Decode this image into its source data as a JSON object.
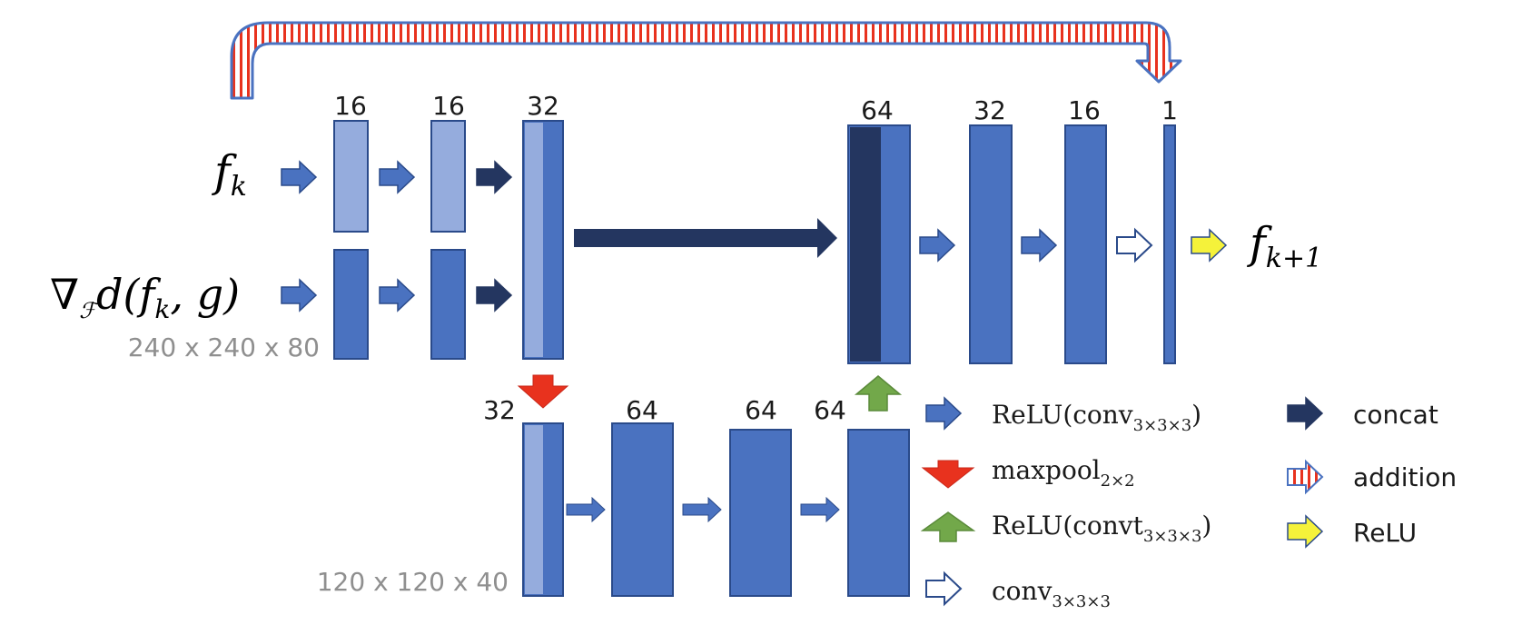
{
  "colors": {
    "light_block": "#95acdd",
    "block": "#4a72c0",
    "dark_block": "#243660",
    "outline": "#2a4a8a",
    "conv_arrow": "#4a72c0",
    "concat_arrow": "#243660",
    "maxpool_arrow": "#e8321e",
    "upconv_arrow": "#72a84a",
    "relu_arrow": "#f5f23a",
    "addition_stripe_red": "#e8321e",
    "addition_outline": "#4a72c0"
  },
  "inputs": {
    "f_k_label": "f",
    "f_k_sub": "k",
    "gradient_label": "∇",
    "gradient_sub": "ℱ",
    "gradient_rest": "d(f",
    "gradient_k": "k",
    "gradient_end": ", g)"
  },
  "output": {
    "label": "f",
    "sub": "k+1"
  },
  "encoder": {
    "channels": [
      "16",
      "16",
      "32"
    ],
    "dims": "240 x 240 x 80"
  },
  "bottleneck": {
    "channels": [
      "32",
      "64",
      "64",
      "64"
    ],
    "dims": "120 x 120 x 40"
  },
  "decoder": {
    "channels": [
      "64",
      "32",
      "16",
      "1"
    ]
  },
  "legend": {
    "relu_conv": {
      "main": "ReLU(conv",
      "sub": "3×3×3",
      "end": ")",
      "icon": "blue-arrow-icon"
    },
    "maxpool": {
      "main": "maxpool",
      "sub": "2×2",
      "icon": "red-down-arrow-icon"
    },
    "relu_convt": {
      "main": "ReLU(convt",
      "sub": "3×3×3",
      "end": ")",
      "icon": "green-up-arrow-icon"
    },
    "conv": {
      "main": "conv",
      "sub": "3×3×3",
      "icon": "hollow-arrow-icon"
    },
    "concat": {
      "label": "concat",
      "icon": "navy-arrow-icon"
    },
    "addition": {
      "label": "addition",
      "icon": "striped-arrow-icon"
    },
    "relu": {
      "label": "ReLU",
      "icon": "yellow-arrow-icon"
    }
  }
}
